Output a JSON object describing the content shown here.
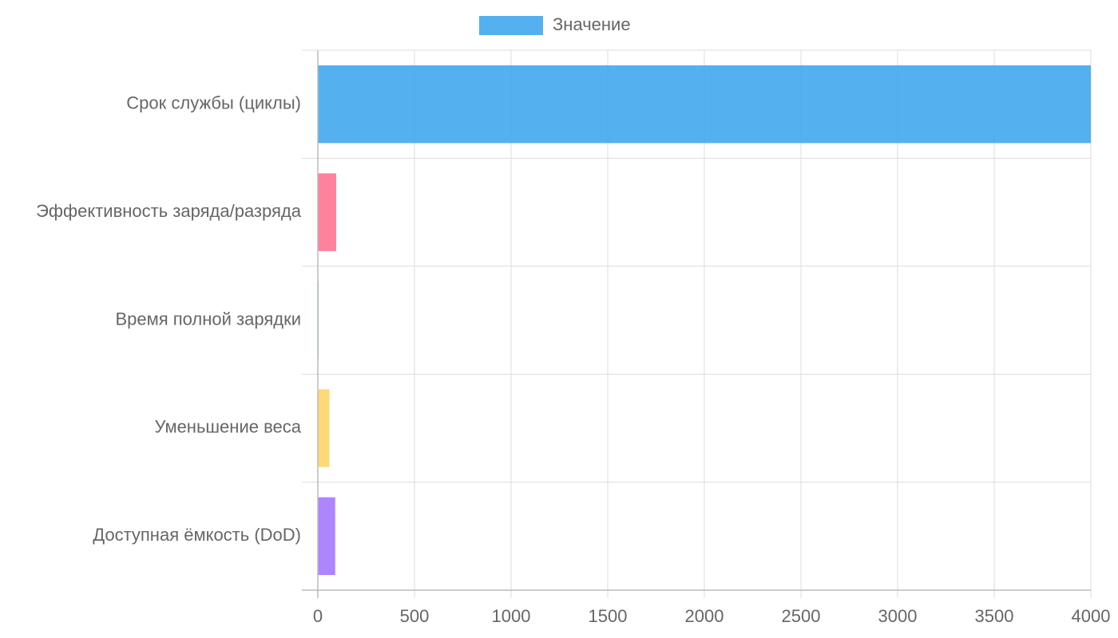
{
  "chart_data": {
    "type": "bar",
    "orientation": "horizontal",
    "categories": [
      "Срок службы (циклы)",
      "Эффективность заряда/разряда",
      "Время полной зарядки",
      "Уменьшение веса",
      "Доступная ёмкость (DoD)"
    ],
    "series": [
      {
        "name": "Значение",
        "color": "rgba(54,162,235,0.85)",
        "colors": [
          "rgba(54,162,235,0.85)",
          "rgba(255,99,132,0.8)",
          "rgba(75,192,192,0.8)",
          "rgba(255,206,86,0.8)",
          "rgba(153,102,255,0.8)"
        ],
        "values": [
          4000,
          95,
          2,
          60,
          90
        ]
      }
    ],
    "xlim": [
      0,
      4000
    ],
    "xticks": [
      0,
      500,
      1000,
      1500,
      2000,
      2500,
      3000,
      3500,
      4000
    ],
    "grid": true,
    "legend": "top"
  }
}
